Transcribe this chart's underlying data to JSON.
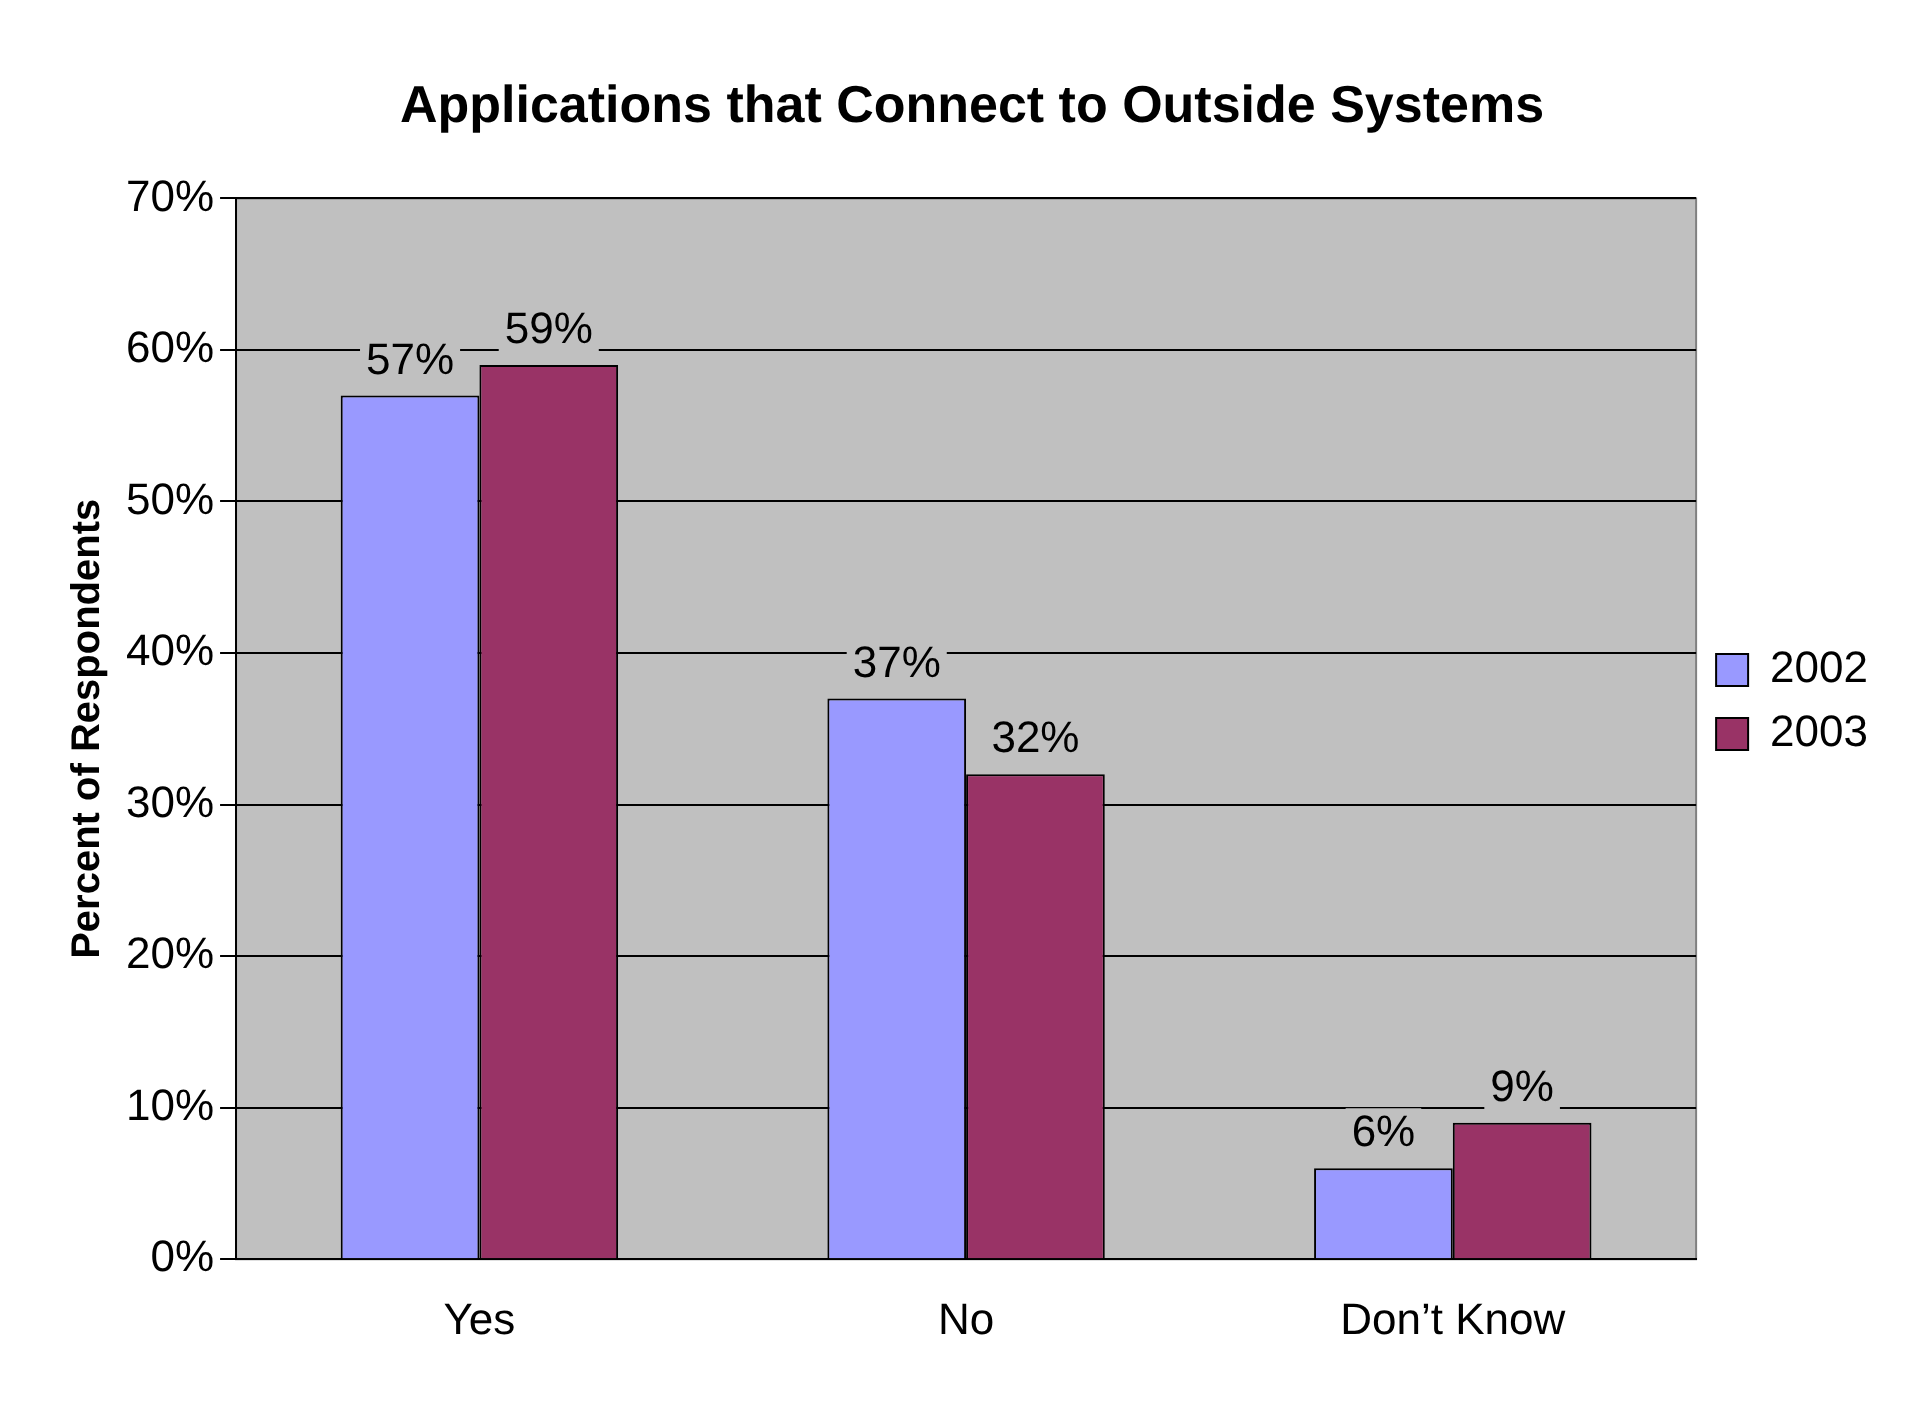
{
  "chart_data": {
    "type": "bar",
    "title": "Applications that Connect to Outside Systems",
    "ylabel": "Percent of Respondents",
    "categories": [
      "Yes",
      "No",
      "Don’t Know"
    ],
    "series": [
      {
        "name": "2002",
        "color": "#9999ff",
        "values": [
          57,
          37,
          6
        ],
        "value_labels": [
          "57%",
          "37%",
          "6%"
        ]
      },
      {
        "name": "2003",
        "color": "#993366",
        "values": [
          59,
          32,
          9
        ],
        "value_labels": [
          "59%",
          "32%",
          "9%"
        ]
      }
    ],
    "ylim": [
      0,
      70
    ],
    "yticks": [
      {
        "value": 0,
        "label": "0%"
      },
      {
        "value": 10,
        "label": "10%"
      },
      {
        "value": 20,
        "label": "20%"
      },
      {
        "value": 30,
        "label": "30%"
      },
      {
        "value": 40,
        "label": "40%"
      },
      {
        "value": 50,
        "label": "50%"
      },
      {
        "value": 60,
        "label": "60%"
      },
      {
        "value": 70,
        "label": "70%"
      }
    ],
    "grid": "y",
    "legend": "right"
  }
}
